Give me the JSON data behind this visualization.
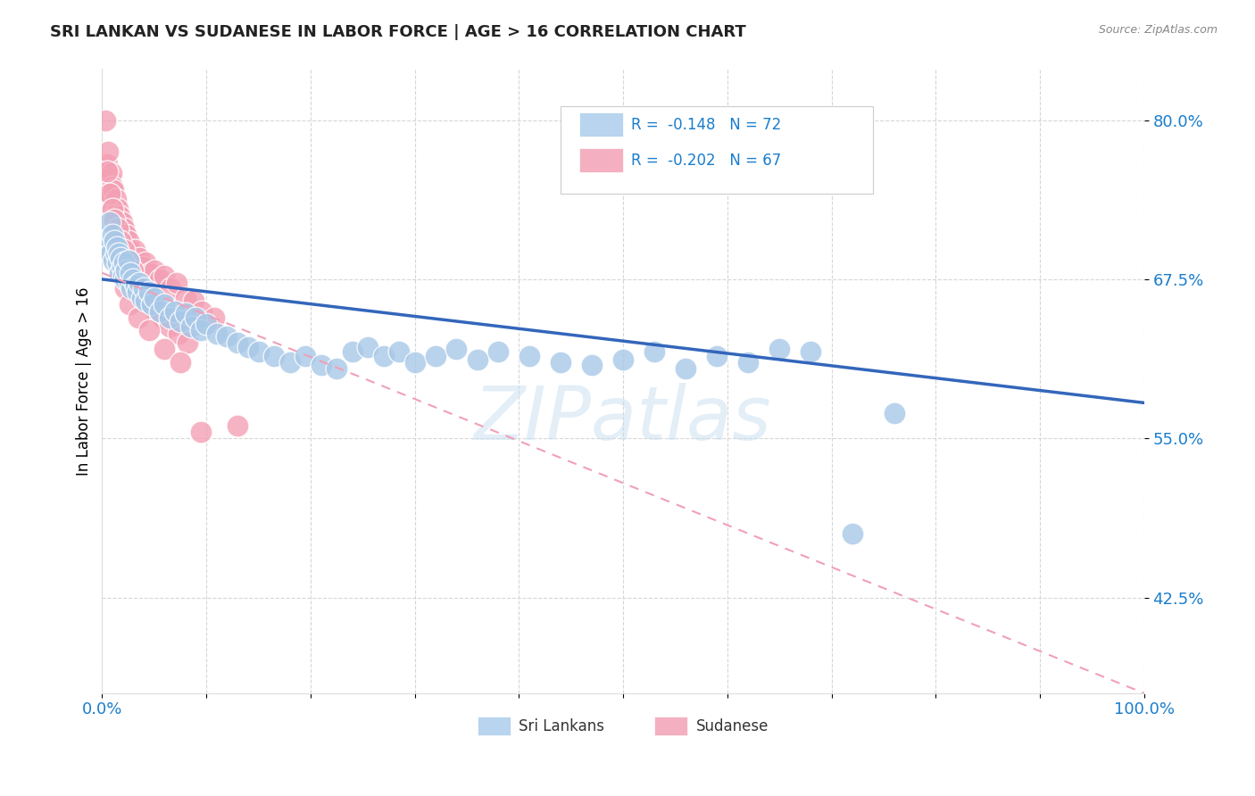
{
  "title": "SRI LANKAN VS SUDANESE IN LABOR FORCE | AGE > 16 CORRELATION CHART",
  "source": "Source: ZipAtlas.com",
  "ylabel": "In Labor Force | Age > 16",
  "yticks": [
    0.425,
    0.55,
    0.675,
    0.8
  ],
  "ytick_labels": [
    "42.5%",
    "55.0%",
    "67.5%",
    "80.0%"
  ],
  "xlim": [
    0.0,
    1.0
  ],
  "ylim": [
    0.35,
    0.84
  ],
  "sri_lankans_color": "#a8c8e8",
  "sudanese_color": "#f4a0b4",
  "trendline_sri_color": "#3366bb",
  "trendline_sud_color": "#f0a0b8",
  "watermark": "ZIPatlas",
  "sri_lankans_x": [
    0.005,
    0.007,
    0.008,
    0.01,
    0.011,
    0.012,
    0.013,
    0.014,
    0.015,
    0.016,
    0.017,
    0.018,
    0.019,
    0.02,
    0.021,
    0.022,
    0.023,
    0.025,
    0.026,
    0.027,
    0.028,
    0.03,
    0.032,
    0.034,
    0.036,
    0.038,
    0.04,
    0.042,
    0.045,
    0.048,
    0.05,
    0.055,
    0.06,
    0.065,
    0.07,
    0.075,
    0.08,
    0.085,
    0.09,
    0.095,
    0.1,
    0.11,
    0.12,
    0.13,
    0.14,
    0.15,
    0.165,
    0.18,
    0.195,
    0.21,
    0.225,
    0.24,
    0.255,
    0.27,
    0.285,
    0.3,
    0.32,
    0.34,
    0.36,
    0.38,
    0.41,
    0.44,
    0.47,
    0.5,
    0.53,
    0.56,
    0.59,
    0.62,
    0.65,
    0.68,
    0.72,
    0.76
  ],
  "sri_lankans_y": [
    0.7,
    0.72,
    0.695,
    0.71,
    0.69,
    0.705,
    0.695,
    0.7,
    0.688,
    0.695,
    0.68,
    0.692,
    0.685,
    0.678,
    0.688,
    0.675,
    0.682,
    0.69,
    0.672,
    0.68,
    0.668,
    0.675,
    0.67,
    0.665,
    0.672,
    0.66,
    0.668,
    0.658,
    0.665,
    0.655,
    0.66,
    0.65,
    0.655,
    0.645,
    0.65,
    0.642,
    0.648,
    0.638,
    0.645,
    0.635,
    0.64,
    0.632,
    0.63,
    0.625,
    0.622,
    0.618,
    0.615,
    0.61,
    0.615,
    0.608,
    0.605,
    0.618,
    0.622,
    0.615,
    0.618,
    0.61,
    0.615,
    0.62,
    0.612,
    0.618,
    0.615,
    0.61,
    0.608,
    0.612,
    0.618,
    0.605,
    0.615,
    0.61,
    0.62,
    0.618,
    0.475,
    0.57
  ],
  "sudanese_x": [
    0.003,
    0.005,
    0.006,
    0.007,
    0.008,
    0.009,
    0.01,
    0.01,
    0.011,
    0.012,
    0.013,
    0.014,
    0.015,
    0.016,
    0.017,
    0.018,
    0.019,
    0.02,
    0.021,
    0.022,
    0.023,
    0.024,
    0.025,
    0.027,
    0.029,
    0.031,
    0.033,
    0.036,
    0.039,
    0.042,
    0.046,
    0.05,
    0.055,
    0.06,
    0.066,
    0.072,
    0.08,
    0.088,
    0.096,
    0.108,
    0.005,
    0.007,
    0.01,
    0.012,
    0.015,
    0.018,
    0.021,
    0.025,
    0.03,
    0.035,
    0.04,
    0.046,
    0.052,
    0.058,
    0.065,
    0.073,
    0.082,
    0.015,
    0.018,
    0.022,
    0.026,
    0.035,
    0.045,
    0.06,
    0.075,
    0.095,
    0.13
  ],
  "sudanese_y": [
    0.8,
    0.765,
    0.775,
    0.755,
    0.74,
    0.758,
    0.748,
    0.73,
    0.745,
    0.725,
    0.738,
    0.72,
    0.73,
    0.718,
    0.725,
    0.71,
    0.72,
    0.708,
    0.715,
    0.7,
    0.71,
    0.695,
    0.705,
    0.698,
    0.692,
    0.698,
    0.688,
    0.692,
    0.685,
    0.688,
    0.68,
    0.682,
    0.675,
    0.678,
    0.668,
    0.672,
    0.66,
    0.658,
    0.65,
    0.645,
    0.76,
    0.742,
    0.73,
    0.722,
    0.715,
    0.705,
    0.698,
    0.69,
    0.682,
    0.672,
    0.665,
    0.658,
    0.65,
    0.645,
    0.638,
    0.632,
    0.625,
    0.695,
    0.68,
    0.668,
    0.655,
    0.645,
    0.635,
    0.62,
    0.61,
    0.555,
    0.56
  ]
}
